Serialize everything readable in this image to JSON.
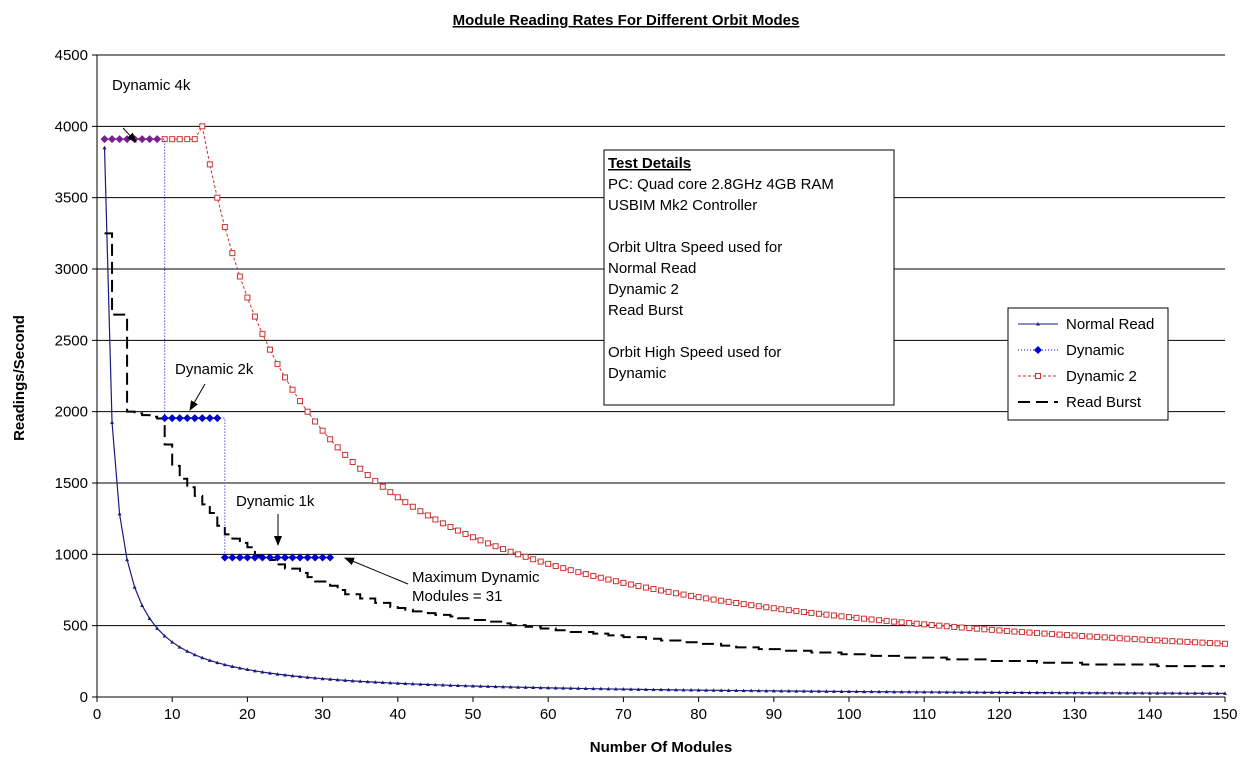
{
  "chart_data": {
    "type": "line",
    "title": "Module Reading Rates For Different Orbit Modes",
    "xlabel": "Number Of Modules",
    "ylabel": "Readings/Second",
    "xlim": [
      0,
      150
    ],
    "ylim": [
      0,
      4500
    ],
    "x_ticks": [
      0,
      10,
      20,
      30,
      40,
      50,
      60,
      70,
      80,
      90,
      100,
      110,
      120,
      130,
      140,
      150
    ],
    "y_ticks": [
      0,
      500,
      1000,
      1500,
      2000,
      2500,
      3000,
      3500,
      4000,
      4500
    ],
    "grid": "horizontal",
    "legend_position": "right",
    "series": [
      {
        "name": "Normal Read",
        "color": "#1a1a80",
        "marker": "triangle",
        "formula": "3850 / n",
        "x_range": [
          1,
          150
        ],
        "sample_values": [
          {
            "x": 1,
            "y": 3850
          },
          {
            "x": 2,
            "y": 1925
          },
          {
            "x": 5,
            "y": 770
          },
          {
            "x": 10,
            "y": 385
          },
          {
            "x": 20,
            "y": 193
          },
          {
            "x": 50,
            "y": 77
          },
          {
            "x": 100,
            "y": 39
          },
          {
            "x": 150,
            "y": 26
          }
        ]
      },
      {
        "name": "Dynamic",
        "color": "#0000cc",
        "marker": "diamond",
        "segments": [
          {
            "x_from": 1,
            "x_to": 8,
            "y": 3910
          },
          {
            "x_from": 9,
            "x_to": 16,
            "y": 1955
          },
          {
            "x_from": 17,
            "x_to": 31,
            "y": 978
          }
        ]
      },
      {
        "name": "Dynamic 2",
        "color": "#cc3333",
        "marker": "square",
        "plateau": {
          "x_from": 9,
          "x_to": 13,
          "y": 3910
        },
        "peak": {
          "x": 14,
          "y": 4000
        },
        "formula_after_peak": "56000 / n",
        "x_range": [
          14,
          150
        ],
        "sample_values": [
          {
            "x": 14,
            "y": 4000
          },
          {
            "x": 20,
            "y": 2800
          },
          {
            "x": 30,
            "y": 1867
          },
          {
            "x": 50,
            "y": 1120
          },
          {
            "x": 100,
            "y": 560
          },
          {
            "x": 150,
            "y": 373
          }
        ]
      },
      {
        "name": "Read Burst",
        "color": "#000000",
        "style": "long-dash",
        "formula": "ceil(n/chunk) * chunk stepped rate",
        "x_range": [
          1,
          150
        ],
        "sample_values": [
          {
            "x": 1,
            "y": 3250
          },
          {
            "x": 2,
            "y": 2680
          },
          {
            "x": 4,
            "y": 2000
          },
          {
            "x": 8,
            "y": 1950
          },
          {
            "x": 10,
            "y": 1610
          },
          {
            "x": 14,
            "y": 1340
          },
          {
            "x": 17,
            "y": 1150
          },
          {
            "x": 21,
            "y": 1000
          },
          {
            "x": 26,
            "y": 890
          },
          {
            "x": 30,
            "y": 800
          },
          {
            "x": 35,
            "y": 690
          },
          {
            "x": 41,
            "y": 610
          },
          {
            "x": 51,
            "y": 535
          },
          {
            "x": 61,
            "y": 470
          },
          {
            "x": 75,
            "y": 400
          },
          {
            "x": 90,
            "y": 330
          },
          {
            "x": 105,
            "y": 285
          },
          {
            "x": 120,
            "y": 255
          },
          {
            "x": 130,
            "y": 235
          },
          {
            "x": 150,
            "y": 210
          }
        ]
      }
    ],
    "annotations": [
      {
        "text": "Dynamic 4k",
        "arrow_to": {
          "x": 4,
          "y": 3910
        }
      },
      {
        "text": "Dynamic 2k",
        "arrow_to": {
          "x": 14,
          "y": 1955
        }
      },
      {
        "text": "Dynamic 1k",
        "arrow_to": {
          "x": 24,
          "y": 978
        }
      },
      {
        "text": "Maximum Dynamic\nModules = 31",
        "arrow_to": {
          "x": 32,
          "y": 978
        }
      }
    ],
    "info_box": {
      "heading": "Test Details",
      "lines": [
        "PC:  Quad core 2.8GHz 4GB RAM",
        "USBIM Mk2 Controller",
        "",
        "Orbit Ultra Speed used for",
        "Normal Read",
        "Dynamic 2",
        "Read Burst",
        "",
        "Orbit High Speed used for",
        "Dynamic"
      ]
    }
  }
}
